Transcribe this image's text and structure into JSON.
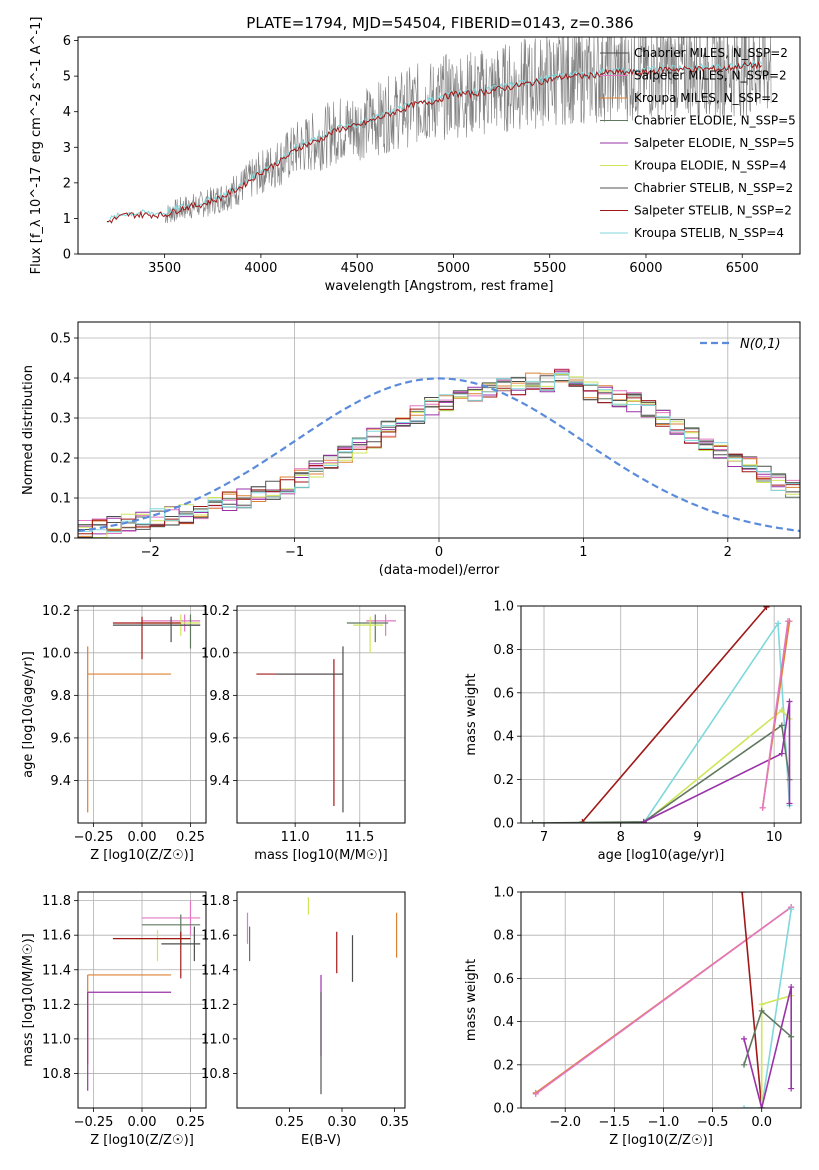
{
  "title": "PLATE=1794, MJD=54504, FIBERID=0143, z=0.386",
  "series": [
    {
      "name": "Chabrier MILES, N_SSP=2",
      "color": "#4d4d4d"
    },
    {
      "name": "Salpeter MILES, N_SSP=2",
      "color": "#e377c2"
    },
    {
      "name": "Kroupa MILES, N_SSP=2",
      "color": "#dd8033"
    },
    {
      "name": "Chabrier ELODIE, N_SSP=5",
      "color": "#607860"
    },
    {
      "name": "Salpeter ELODIE, N_SSP=5",
      "color": "#9932a8"
    },
    {
      "name": "Kroupa ELODIE, N_SSP=4",
      "color": "#cfe65a"
    },
    {
      "name": "Chabrier STELIB, N_SSP=2",
      "color": "#555555"
    },
    {
      "name": "Salpeter STELIB, N_SSP=2",
      "color": "#a01818"
    },
    {
      "name": "Kroupa STELIB, N_SSP=4",
      "color": "#80d8dc"
    }
  ],
  "chart_data": [
    {
      "type": "line",
      "id": "spectrum",
      "xlabel": "wavelength [Angstrom, rest frame]",
      "ylabel": "Flux [f_λ 10^-17 erg cm^-2 s^-1 A^-1]",
      "xlim": [
        3050,
        6800
      ],
      "ylim": [
        0,
        6.1
      ],
      "xticks": [
        3500,
        4000,
        4500,
        5000,
        5500,
        6000,
        6500
      ],
      "yticks": [
        0,
        1,
        2,
        3,
        4,
        5,
        6
      ],
      "grid": false,
      "legend": "right",
      "data_color": "#808080",
      "x": [
        3200,
        3300,
        3400,
        3500,
        3600,
        3700,
        3800,
        3900,
        4000,
        4100,
        4200,
        4300,
        4400,
        4500,
        4600,
        4700,
        4800,
        4900,
        5000,
        5100,
        5200,
        5300,
        5400,
        5500,
        5600,
        5700,
        5800,
        5900,
        6000,
        6100,
        6200,
        6300,
        6400,
        6500,
        6600
      ],
      "model": [
        0.9,
        1.1,
        1.1,
        1.1,
        1.3,
        1.4,
        1.6,
        1.9,
        2.3,
        2.6,
        3.0,
        3.2,
        3.5,
        3.6,
        3.8,
        4.0,
        4.2,
        4.3,
        4.5,
        4.5,
        4.6,
        4.7,
        4.8,
        4.9,
        5.0,
        5.0,
        5.1,
        5.1,
        5.1,
        5.2,
        5.2,
        5.2,
        5.2,
        5.3,
        5.3
      ],
      "data_start": 3500
    },
    {
      "type": "histogram",
      "id": "residuals",
      "xlabel": "(data-model)/error",
      "ylabel": "Normed distribution",
      "xlim": [
        -2.5,
        2.5
      ],
      "ylim": [
        0,
        0.54
      ],
      "xticks": [
        -2,
        -1,
        0,
        1,
        2
      ],
      "yticks": [
        0.0,
        0.1,
        0.2,
        0.3,
        0.4,
        0.5
      ],
      "grid": true,
      "legend": "top-right",
      "gaussian_label": "N(0,1)",
      "gaussian_color": "#5b8bdb",
      "bin_width": 0.1,
      "bin_start": -2.5,
      "hist": [
        0.02,
        0.025,
        0.03,
        0.035,
        0.045,
        0.05,
        0.055,
        0.06,
        0.07,
        0.08,
        0.09,
        0.1,
        0.11,
        0.12,
        0.13,
        0.15,
        0.17,
        0.19,
        0.21,
        0.23,
        0.25,
        0.27,
        0.29,
        0.31,
        0.33,
        0.34,
        0.35,
        0.36,
        0.37,
        0.38,
        0.38,
        0.39,
        0.39,
        0.4,
        0.38,
        0.37,
        0.36,
        0.35,
        0.34,
        0.32,
        0.3,
        0.28,
        0.26,
        0.24,
        0.22,
        0.2,
        0.18,
        0.16,
        0.14,
        0.12
      ]
    },
    {
      "type": "errorbar",
      "id": "age-vs-Z",
      "xlabel": "Z [log10(Z/Z☉)]",
      "ylabel": "age  [log10(age/yr)]",
      "xlim": [
        -0.33,
        0.33
      ],
      "ylim": [
        9.2,
        10.22
      ],
      "xticks": [
        -0.25,
        0.0,
        0.25
      ],
      "yticks": [
        9.4,
        9.6,
        9.8,
        10.0,
        10.2
      ],
      "grid": true,
      "points": [
        {
          "x": 0.22,
          "y": 10.15,
          "x0": 0.0,
          "x1": 0.3,
          "y0": 10.1,
          "y1": 10.18
        },
        {
          "x": 0.25,
          "y": 10.13,
          "x0": 0.16,
          "x1": 0.3,
          "y0": 10.02,
          "y1": 10.18
        },
        {
          "x": 0.2,
          "y": 10.14,
          "x0": -0.03,
          "x1": 0.3,
          "y0": 10.08,
          "y1": 10.18
        },
        {
          "x": 0.0,
          "y": 10.14,
          "x0": -0.15,
          "x1": 0.2,
          "y0": 9.97,
          "y1": 10.17
        },
        {
          "x": 0.15,
          "y": 10.13,
          "x0": -0.15,
          "x1": 0.3,
          "y0": 10.05,
          "y1": 10.17
        },
        {
          "x": -0.28,
          "y": 9.9,
          "x0": -0.28,
          "x1": 0.15,
          "y0": 9.25,
          "y1": 10.03
        }
      ]
    },
    {
      "type": "errorbar",
      "id": "age-vs-mass",
      "xlabel": "mass [log10(M/M☉)]",
      "ylabel": "",
      "xlim": [
        10.55,
        11.85
      ],
      "ylim": [
        9.2,
        10.22
      ],
      "xticks": [
        11.0,
        11.5
      ],
      "yticks": [
        9.4,
        9.6,
        9.8,
        10.0,
        10.2
      ],
      "grid": true,
      "points": [
        {
          "x": 11.7,
          "y": 10.15,
          "x0": 11.55,
          "x1": 11.78,
          "y0": 10.08,
          "y1": 10.18
        },
        {
          "x": 11.62,
          "y": 10.14,
          "x0": 11.4,
          "x1": 11.72,
          "y0": 10.05,
          "y1": 10.18
        },
        {
          "x": 11.58,
          "y": 10.13,
          "x0": 11.45,
          "x1": 11.68,
          "y0": 10.0,
          "y1": 10.17
        },
        {
          "x": 11.3,
          "y": 9.9,
          "x0": 10.7,
          "x1": 11.37,
          "y0": 9.28,
          "y1": 9.97
        },
        {
          "x": 11.37,
          "y": 9.9,
          "x0": 10.85,
          "x1": 11.37,
          "y0": 9.25,
          "y1": 10.03
        }
      ]
    },
    {
      "type": "line",
      "id": "massweight-vs-age",
      "xlabel": "age  [log10(age/yr)]",
      "ylabel": "mass weight",
      "xlim": [
        6.7,
        10.35
      ],
      "ylim": [
        0,
        1.0
      ],
      "xticks": [
        7,
        8,
        9,
        10
      ],
      "yticks": [
        0.0,
        0.2,
        0.4,
        0.6,
        0.8,
        1.0
      ],
      "grid": true,
      "lines": [
        {
          "series": 7,
          "x": [
            7.5,
            9.9
          ],
          "y": [
            0.005,
            0.995
          ]
        },
        {
          "series": 8,
          "x": [
            8.3,
            10.05,
            10.2
          ],
          "y": [
            0.0,
            0.92,
            0.08
          ]
        },
        {
          "series": 5,
          "x": [
            8.3,
            10.1,
            10.2
          ],
          "y": [
            0.0,
            0.52,
            0.48
          ]
        },
        {
          "series": 3,
          "x": [
            6.85,
            8.3,
            10.1,
            10.2
          ],
          "y": [
            0.0,
            0.005,
            0.45,
            0.2
          ]
        },
        {
          "series": 4,
          "x": [
            8.3,
            10.1,
            10.2,
            10.2
          ],
          "y": [
            0.005,
            0.32,
            0.56,
            0.09
          ]
        },
        {
          "series": 2,
          "x": [
            9.85,
            10.2
          ],
          "y": [
            0.07,
            0.93
          ]
        },
        {
          "series": 1,
          "x": [
            9.85,
            10.18
          ],
          "y": [
            0.07,
            0.93
          ]
        }
      ]
    },
    {
      "type": "errorbar",
      "id": "mass-vs-Z",
      "xlabel": "Z [log10(Z/Z☉)]",
      "ylabel": "mass [log10(M/M☉)]",
      "xlim": [
        -0.33,
        0.33
      ],
      "ylim": [
        10.6,
        11.85
      ],
      "xticks": [
        -0.25,
        0.0,
        0.25
      ],
      "yticks": [
        10.8,
        11.0,
        11.2,
        11.4,
        11.6,
        11.8
      ],
      "grid": true,
      "points": [
        {
          "x": 0.25,
          "y": 11.7,
          "x0": 0.0,
          "x1": 0.3,
          "y0": 11.6,
          "y1": 11.8
        },
        {
          "x": 0.2,
          "y": 11.66,
          "x0": 0.0,
          "x1": 0.3,
          "y0": 11.55,
          "y1": 11.72
        },
        {
          "x": 0.08,
          "y": 11.58,
          "x0": -0.03,
          "x1": 0.25,
          "y0": 11.45,
          "y1": 11.63
        },
        {
          "x": 0.2,
          "y": 11.58,
          "x0": -0.15,
          "x1": 0.25,
          "y0": 11.35,
          "y1": 11.62
        },
        {
          "x": 0.27,
          "y": 11.55,
          "x0": 0.1,
          "x1": 0.3,
          "y0": 11.45,
          "y1": 11.65
        },
        {
          "x": -0.28,
          "y": 11.37,
          "x0": -0.28,
          "x1": 0.15,
          "y0": 10.85,
          "y1": 11.37
        },
        {
          "x": -0.28,
          "y": 11.27,
          "x0": -0.28,
          "x1": 0.15,
          "y0": 10.7,
          "y1": 11.27
        }
      ]
    },
    {
      "type": "errorbar",
      "id": "mass-vs-ebv",
      "xlabel": "E(B-V)",
      "ylabel": "",
      "xlim": [
        0.2,
        0.36
      ],
      "ylim": [
        10.6,
        11.85
      ],
      "xticks": [
        0.25,
        0.3,
        0.35
      ],
      "yticks": [
        10.8,
        11.0,
        11.2,
        11.4,
        11.6,
        11.8
      ],
      "grid": false,
      "points": [
        {
          "x": 0.21,
          "y": 11.65,
          "y0": 11.55,
          "y1": 11.73
        },
        {
          "x": 0.212,
          "y": 11.55,
          "y0": 11.45,
          "y1": 11.65
        },
        {
          "x": 0.268,
          "y": 11.78,
          "y0": 11.72,
          "y1": 11.82
        },
        {
          "x": 0.295,
          "y": 11.5,
          "y0": 11.38,
          "y1": 11.62
        },
        {
          "x": 0.31,
          "y": 11.47,
          "y0": 11.33,
          "y1": 11.6
        },
        {
          "x": 0.352,
          "y": 11.6,
          "y0": 11.47,
          "y1": 11.73
        },
        {
          "x": 0.28,
          "y": 11.2,
          "y0": 10.9,
          "y1": 11.37
        },
        {
          "x": 0.28,
          "y": 11.0,
          "y0": 10.68,
          "y1": 11.27
        }
      ]
    },
    {
      "type": "line",
      "id": "massweight-vs-Z",
      "xlabel": "Z [log10(Z/Z☉)]",
      "ylabel": "mass weight",
      "xlim": [
        -2.45,
        0.4
      ],
      "ylim": [
        0,
        1.0
      ],
      "xticks": [
        -2.0,
        -1.5,
        -1.0,
        -0.5,
        0.0
      ],
      "yticks": [
        0.0,
        0.2,
        0.4,
        0.6,
        0.8,
        1.0
      ],
      "grid": true,
      "lines": [
        {
          "series": 2,
          "x": [
            -2.3,
            0.3
          ],
          "y": [
            0.07,
            0.93
          ]
        },
        {
          "series": 1,
          "x": [
            -2.3,
            0.3
          ],
          "y": [
            0.065,
            0.93
          ]
        },
        {
          "series": 7,
          "x": [
            -0.2,
            0.0
          ],
          "y": [
            1.0,
            0.0
          ]
        },
        {
          "series": 8,
          "x": [
            -0.18,
            0.0,
            0.3
          ],
          "y": [
            0.0,
            0.0,
            0.92
          ]
        },
        {
          "series": 5,
          "x": [
            0.0,
            0.0,
            0.3
          ],
          "y": [
            0.0,
            0.48,
            0.52
          ]
        },
        {
          "series": 4,
          "x": [
            -0.18,
            0.0,
            0.3,
            0.3
          ],
          "y": [
            0.32,
            0.0,
            0.56,
            0.09
          ]
        },
        {
          "series": 3,
          "x": [
            -0.18,
            0.0,
            0.3
          ],
          "y": [
            0.2,
            0.45,
            0.33
          ]
        }
      ]
    }
  ]
}
